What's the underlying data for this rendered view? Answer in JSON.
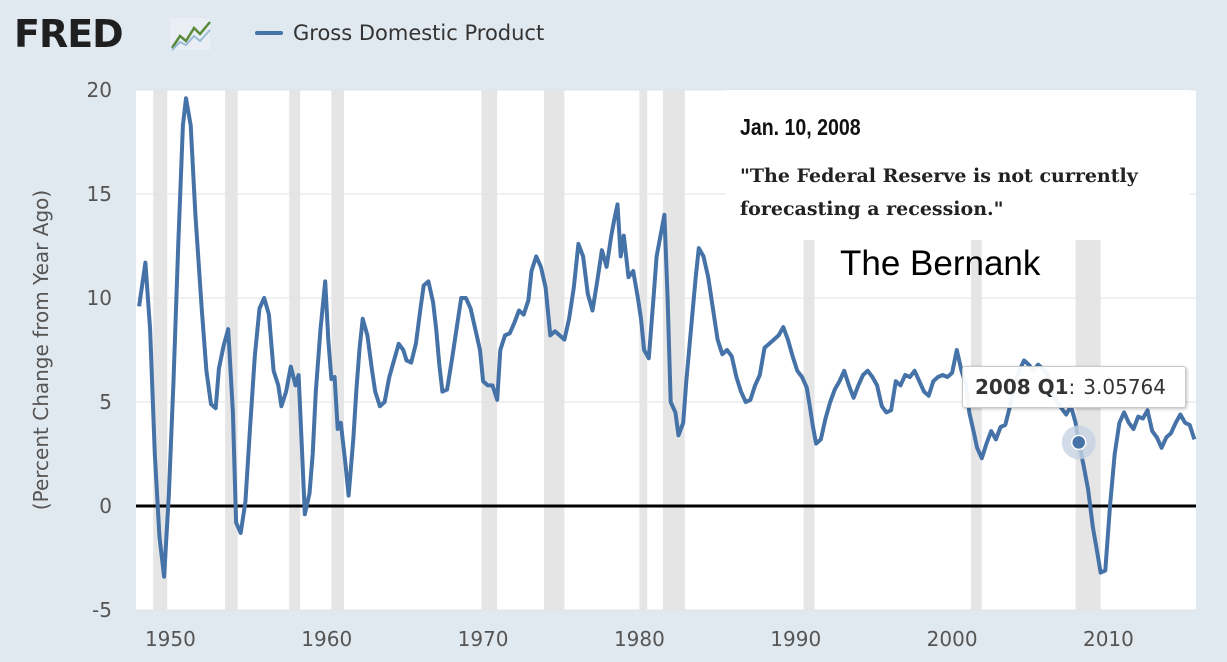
{
  "header": {
    "logo_text": "FRED",
    "logo_icon": "fred-line-chart-icon"
  },
  "legend": {
    "series_label": "Gross Domestic Product",
    "series_color": "#4572a7"
  },
  "annotation": {
    "date": "Jan. 10, 2008",
    "quote": "\"The Federal Reserve is not currently forecasting a recession.\"",
    "caption": "The Bernank"
  },
  "tooltip": {
    "label": "2008 Q1",
    "separator": ":",
    "value": "3.05764"
  },
  "chart_data": {
    "type": "line",
    "ylabel": "(Percent Change from Year Ago)",
    "xlabel": "",
    "xlim": [
      1947.8,
      2015.6
    ],
    "ylim": [
      -5,
      20
    ],
    "yticks": [
      -5,
      0,
      5,
      10,
      15,
      20
    ],
    "xticks": [
      1950,
      1960,
      1970,
      1980,
      1990,
      2000,
      2010
    ],
    "grid": true,
    "zero_line": true,
    "recessions": [
      [
        1948.9,
        1949.8
      ],
      [
        1953.5,
        1954.3
      ],
      [
        1957.6,
        1958.3
      ],
      [
        1960.3,
        1961.1
      ],
      [
        1969.9,
        1970.9
      ],
      [
        1973.9,
        1975.2
      ],
      [
        1980.0,
        1980.5
      ],
      [
        1981.5,
        1982.9
      ],
      [
        1990.5,
        1991.2
      ],
      [
        2001.2,
        2001.9
      ],
      [
        2007.9,
        2009.5
      ]
    ],
    "series": [
      {
        "name": "Gross Domestic Product",
        "color": "#4572a7",
        "points": [
          [
            1948.0,
            9.6
          ],
          [
            1948.4,
            11.7
          ],
          [
            1948.7,
            8.5
          ],
          [
            1949.0,
            2.5
          ],
          [
            1949.3,
            -1.5
          ],
          [
            1949.6,
            -3.4
          ],
          [
            1949.9,
            0.5
          ],
          [
            1950.2,
            6.0
          ],
          [
            1950.5,
            12.5
          ],
          [
            1950.8,
            18.3
          ],
          [
            1951.0,
            19.6
          ],
          [
            1951.3,
            18.3
          ],
          [
            1951.6,
            14.0
          ],
          [
            1952.0,
            9.5
          ],
          [
            1952.3,
            6.5
          ],
          [
            1952.6,
            4.9
          ],
          [
            1952.9,
            4.7
          ],
          [
            1953.1,
            6.6
          ],
          [
            1953.4,
            7.7
          ],
          [
            1953.7,
            8.5
          ],
          [
            1954.0,
            4.5
          ],
          [
            1954.2,
            -0.8
          ],
          [
            1954.5,
            -1.3
          ],
          [
            1954.8,
            0.2
          ],
          [
            1955.1,
            3.8
          ],
          [
            1955.4,
            7.2
          ],
          [
            1955.7,
            9.5
          ],
          [
            1956.0,
            10.0
          ],
          [
            1956.3,
            9.2
          ],
          [
            1956.6,
            6.5
          ],
          [
            1956.9,
            5.8
          ],
          [
            1957.1,
            4.8
          ],
          [
            1957.4,
            5.5
          ],
          [
            1957.7,
            6.7
          ],
          [
            1958.0,
            5.8
          ],
          [
            1958.2,
            6.3
          ],
          [
            1958.4,
            3.0
          ],
          [
            1958.6,
            -0.4
          ],
          [
            1958.9,
            0.6
          ],
          [
            1959.1,
            2.5
          ],
          [
            1959.3,
            5.5
          ],
          [
            1959.6,
            8.5
          ],
          [
            1959.9,
            10.8
          ],
          [
            1960.1,
            8.0
          ],
          [
            1960.3,
            6.1
          ],
          [
            1960.5,
            6.2
          ],
          [
            1960.7,
            3.7
          ],
          [
            1960.9,
            4.0
          ],
          [
            1961.2,
            2.0
          ],
          [
            1961.4,
            0.5
          ],
          [
            1961.7,
            3.2
          ],
          [
            1961.9,
            5.6
          ],
          [
            1962.1,
            7.6
          ],
          [
            1962.3,
            9.0
          ],
          [
            1962.6,
            8.2
          ],
          [
            1962.9,
            6.5
          ],
          [
            1963.1,
            5.5
          ],
          [
            1963.4,
            4.8
          ],
          [
            1963.7,
            5.0
          ],
          [
            1964.0,
            6.2
          ],
          [
            1964.3,
            7.0
          ],
          [
            1964.6,
            7.8
          ],
          [
            1964.9,
            7.5
          ],
          [
            1965.1,
            7.0
          ],
          [
            1965.4,
            6.9
          ],
          [
            1965.7,
            7.8
          ],
          [
            1966.0,
            9.5
          ],
          [
            1966.2,
            10.6
          ],
          [
            1966.5,
            10.8
          ],
          [
            1966.8,
            9.8
          ],
          [
            1967.0,
            8.5
          ],
          [
            1967.2,
            6.8
          ],
          [
            1967.4,
            5.5
          ],
          [
            1967.7,
            5.6
          ],
          [
            1968.0,
            7.0
          ],
          [
            1968.3,
            8.5
          ],
          [
            1968.6,
            10.0
          ],
          [
            1968.9,
            10.0
          ],
          [
            1969.2,
            9.5
          ],
          [
            1969.5,
            8.5
          ],
          [
            1969.8,
            7.5
          ],
          [
            1970.0,
            6.0
          ],
          [
            1970.3,
            5.8
          ],
          [
            1970.6,
            5.8
          ],
          [
            1970.9,
            5.1
          ],
          [
            1971.1,
            7.5
          ],
          [
            1971.4,
            8.2
          ],
          [
            1971.7,
            8.3
          ],
          [
            1972.0,
            8.8
          ],
          [
            1972.3,
            9.4
          ],
          [
            1972.6,
            9.2
          ],
          [
            1972.9,
            9.9
          ],
          [
            1973.1,
            11.3
          ],
          [
            1973.4,
            12.0
          ],
          [
            1973.7,
            11.5
          ],
          [
            1974.0,
            10.5
          ],
          [
            1974.3,
            8.2
          ],
          [
            1974.6,
            8.4
          ],
          [
            1974.9,
            8.2
          ],
          [
            1975.2,
            8.0
          ],
          [
            1975.5,
            9.0
          ],
          [
            1975.8,
            10.5
          ],
          [
            1976.1,
            12.6
          ],
          [
            1976.4,
            12.0
          ],
          [
            1976.7,
            10.2
          ],
          [
            1977.0,
            9.4
          ],
          [
            1977.3,
            10.8
          ],
          [
            1977.6,
            12.3
          ],
          [
            1977.9,
            11.5
          ],
          [
            1978.2,
            13.0
          ],
          [
            1978.4,
            13.8
          ],
          [
            1978.6,
            14.5
          ],
          [
            1978.8,
            12.0
          ],
          [
            1979.0,
            13.0
          ],
          [
            1979.3,
            11.0
          ],
          [
            1979.6,
            11.3
          ],
          [
            1979.9,
            10.0
          ],
          [
            1980.1,
            9.0
          ],
          [
            1980.3,
            7.5
          ],
          [
            1980.6,
            7.1
          ],
          [
            1980.9,
            10.0
          ],
          [
            1981.1,
            12.0
          ],
          [
            1981.4,
            13.2
          ],
          [
            1981.6,
            14.0
          ],
          [
            1981.8,
            10.0
          ],
          [
            1982.0,
            5.0
          ],
          [
            1982.3,
            4.5
          ],
          [
            1982.5,
            3.4
          ],
          [
            1982.8,
            4.0
          ],
          [
            1983.0,
            6.0
          ],
          [
            1983.3,
            8.5
          ],
          [
            1983.6,
            11.0
          ],
          [
            1983.8,
            12.4
          ],
          [
            1984.1,
            12.0
          ],
          [
            1984.4,
            11.0
          ],
          [
            1984.7,
            9.5
          ],
          [
            1985.0,
            8.0
          ],
          [
            1985.3,
            7.3
          ],
          [
            1985.6,
            7.5
          ],
          [
            1985.9,
            7.2
          ],
          [
            1986.2,
            6.2
          ],
          [
            1986.5,
            5.5
          ],
          [
            1986.8,
            5.0
          ],
          [
            1987.1,
            5.1
          ],
          [
            1987.4,
            5.8
          ],
          [
            1987.7,
            6.3
          ],
          [
            1988.0,
            7.6
          ],
          [
            1988.3,
            7.8
          ],
          [
            1988.6,
            8.0
          ],
          [
            1988.9,
            8.2
          ],
          [
            1989.2,
            8.6
          ],
          [
            1989.5,
            8.0
          ],
          [
            1989.8,
            7.2
          ],
          [
            1990.1,
            6.5
          ],
          [
            1990.4,
            6.2
          ],
          [
            1990.7,
            5.7
          ],
          [
            1990.9,
            4.8
          ],
          [
            1991.1,
            3.8
          ],
          [
            1991.3,
            3.0
          ],
          [
            1991.6,
            3.2
          ],
          [
            1991.9,
            4.2
          ],
          [
            1992.2,
            5.0
          ],
          [
            1992.5,
            5.6
          ],
          [
            1992.8,
            6.0
          ],
          [
            1993.1,
            6.5
          ],
          [
            1993.4,
            5.8
          ],
          [
            1993.7,
            5.2
          ],
          [
            1994.0,
            5.8
          ],
          [
            1994.3,
            6.3
          ],
          [
            1994.6,
            6.5
          ],
          [
            1994.9,
            6.2
          ],
          [
            1995.2,
            5.8
          ],
          [
            1995.5,
            4.8
          ],
          [
            1995.8,
            4.5
          ],
          [
            1996.1,
            4.6
          ],
          [
            1996.4,
            6.0
          ],
          [
            1996.7,
            5.8
          ],
          [
            1997.0,
            6.3
          ],
          [
            1997.3,
            6.2
          ],
          [
            1997.6,
            6.5
          ],
          [
            1997.9,
            6.0
          ],
          [
            1998.2,
            5.5
          ],
          [
            1998.5,
            5.3
          ],
          [
            1998.8,
            6.0
          ],
          [
            1999.1,
            6.2
          ],
          [
            1999.4,
            6.3
          ],
          [
            1999.7,
            6.2
          ],
          [
            2000.0,
            6.4
          ],
          [
            2000.3,
            7.5
          ],
          [
            2000.6,
            6.5
          ],
          [
            2000.9,
            5.8
          ],
          [
            2001.1,
            4.5
          ],
          [
            2001.4,
            3.5
          ],
          [
            2001.6,
            2.8
          ],
          [
            2001.9,
            2.3
          ],
          [
            2002.2,
            3.0
          ],
          [
            2002.5,
            3.6
          ],
          [
            2002.8,
            3.2
          ],
          [
            2003.1,
            3.8
          ],
          [
            2003.4,
            3.9
          ],
          [
            2003.7,
            4.8
          ],
          [
            2004.0,
            5.8
          ],
          [
            2004.3,
            6.5
          ],
          [
            2004.6,
            7.0
          ],
          [
            2004.9,
            6.8
          ],
          [
            2005.2,
            6.5
          ],
          [
            2005.5,
            6.8
          ],
          [
            2005.8,
            6.6
          ],
          [
            2006.1,
            6.3
          ],
          [
            2006.4,
            5.5
          ],
          [
            2006.7,
            5.0
          ],
          [
            2007.0,
            4.7
          ],
          [
            2007.3,
            4.4
          ],
          [
            2007.6,
            4.8
          ],
          [
            2007.9,
            4.0
          ],
          [
            2008.1,
            3.05764
          ],
          [
            2008.4,
            2.0
          ],
          [
            2008.7,
            0.8
          ],
          [
            2009.0,
            -1.0
          ],
          [
            2009.3,
            -2.3
          ],
          [
            2009.5,
            -3.2
          ],
          [
            2009.8,
            -3.1
          ],
          [
            2010.1,
            0.0
          ],
          [
            2010.4,
            2.5
          ],
          [
            2010.7,
            4.0
          ],
          [
            2011.0,
            4.5
          ],
          [
            2011.3,
            4.0
          ],
          [
            2011.6,
            3.7
          ],
          [
            2011.9,
            4.3
          ],
          [
            2012.2,
            4.2
          ],
          [
            2012.5,
            4.6
          ],
          [
            2012.8,
            3.6
          ],
          [
            2013.1,
            3.3
          ],
          [
            2013.4,
            2.8
          ],
          [
            2013.7,
            3.3
          ],
          [
            2014.0,
            3.5
          ],
          [
            2014.3,
            4.0
          ],
          [
            2014.6,
            4.4
          ],
          [
            2014.9,
            4.0
          ],
          [
            2015.2,
            3.9
          ],
          [
            2015.5,
            3.2
          ]
        ]
      }
    ],
    "highlight": {
      "x": 2008.1,
      "y": 3.05764
    }
  }
}
